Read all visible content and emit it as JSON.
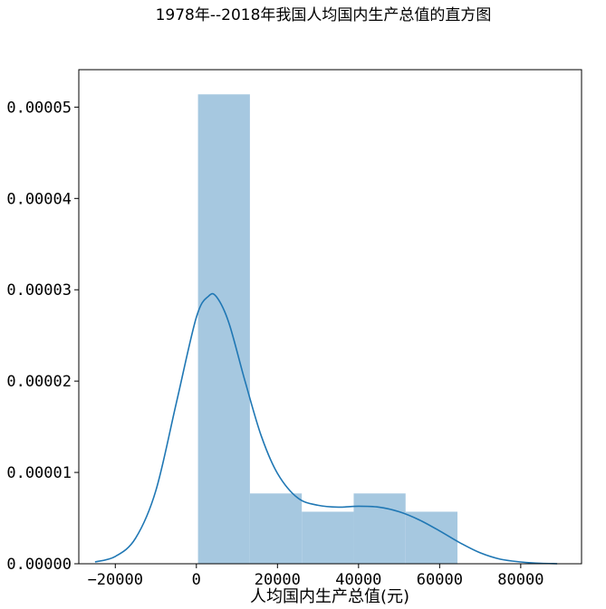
{
  "chart_data": {
    "type": "histogram",
    "title": "1978年--2018年我国人均国内生产总值的直方图",
    "xlabel": "人均国内生产总值(元)",
    "ylabel": "",
    "xlim": [
      -29000,
      95000
    ],
    "ylim": [
      0,
      5.41e-05
    ],
    "x_ticks": [
      -20000,
      0,
      20000,
      40000,
      60000,
      80000
    ],
    "x_tick_labels": [
      "−20000",
      "0",
      "20000",
      "40000",
      "60000",
      "80000"
    ],
    "y_ticks": [
      0,
      1e-05,
      2e-05,
      3e-05,
      4e-05,
      5e-05
    ],
    "y_tick_labels": [
      "0.00000",
      "0.00001",
      "0.00002",
      "0.00003",
      "0.00004",
      "0.00005"
    ],
    "grid": false,
    "bins": [
      {
        "x0": 400,
        "x1": 13200,
        "density": 5.14e-05
      },
      {
        "x0": 13200,
        "x1": 26000,
        "density": 7.7e-06
      },
      {
        "x0": 26000,
        "x1": 38800,
        "density": 5.7e-06
      },
      {
        "x0": 38800,
        "x1": 51600,
        "density": 7.7e-06
      },
      {
        "x0": 51600,
        "x1": 64400,
        "density": 5.7e-06
      }
    ],
    "kde": {
      "x": [
        -25000,
        -20000,
        -15000,
        -10000,
        -5000,
        0,
        3000,
        5000,
        8000,
        12000,
        16000,
        20000,
        25000,
        30000,
        35000,
        40000,
        45000,
        50000,
        55000,
        60000,
        65000,
        70000,
        75000,
        80000,
        85000,
        89000
      ],
      "y": [
        2e-07,
        8e-07,
        2.8e-06,
        8e-06,
        1.75e-05,
        2.7e-05,
        2.93e-05,
        2.92e-05,
        2.64e-05,
        2e-05,
        1.4e-05,
        9.9e-06,
        7.2e-06,
        6.4e-06,
        6.2e-06,
        6.3e-06,
        6.2e-06,
        5.7e-06,
        4.8e-06,
        3.6e-06,
        2.3e-06,
        1.2e-06,
        5e-07,
        2e-07,
        5e-08,
        1e-08
      ]
    },
    "colors": {
      "bars": "#a6c8e0",
      "kde_line": "#1f77b4",
      "axes": "#000000"
    }
  }
}
